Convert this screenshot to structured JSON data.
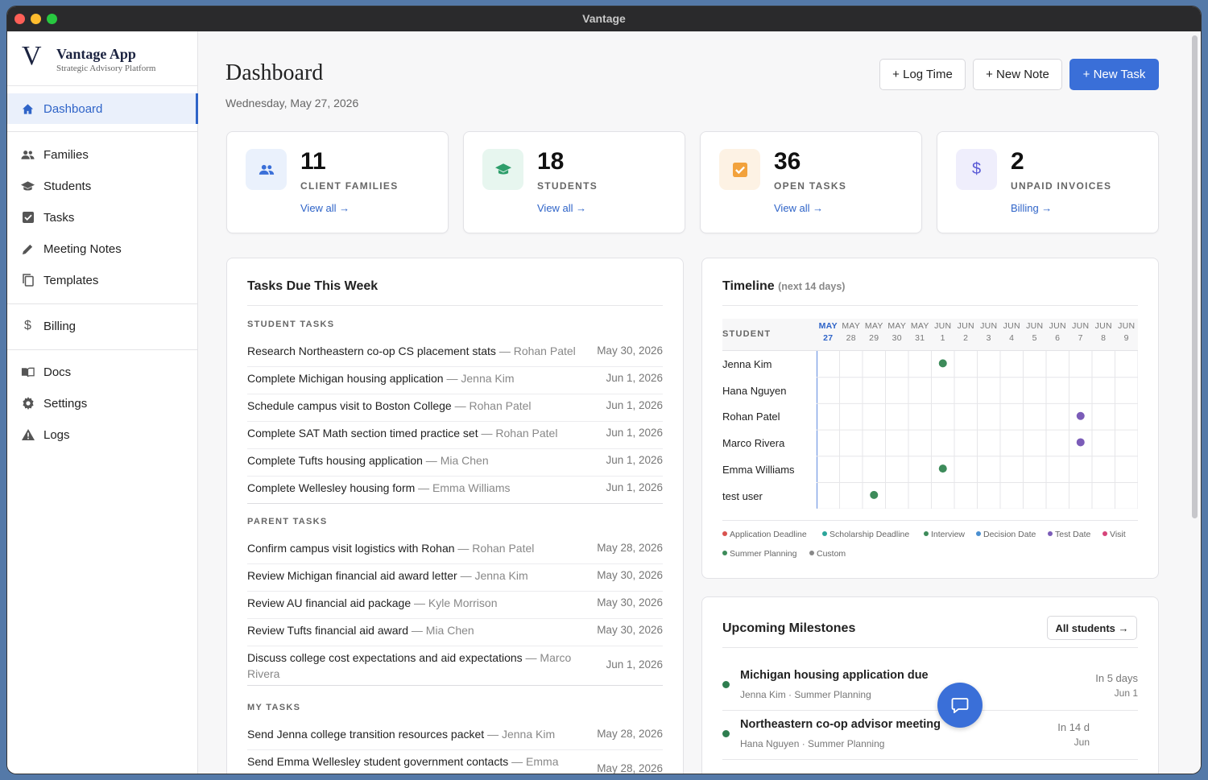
{
  "window": {
    "title": "Vantage"
  },
  "brand": {
    "logo": "V",
    "name": "Vantage App",
    "subtitle": "Strategic Advisory Platform"
  },
  "sidebar": {
    "items": [
      {
        "label": "Dashboard",
        "icon": "home-icon",
        "active": true
      },
      {
        "label": "Families",
        "icon": "people-icon"
      },
      {
        "label": "Students",
        "icon": "graduation-cap-icon"
      },
      {
        "label": "Tasks",
        "icon": "checkbox-icon"
      },
      {
        "label": "Meeting Notes",
        "icon": "pencil-icon"
      },
      {
        "label": "Templates",
        "icon": "copy-icon"
      },
      {
        "label": "Billing",
        "icon": "dollar-icon"
      },
      {
        "label": "Docs",
        "icon": "book-icon"
      },
      {
        "label": "Settings",
        "icon": "gear-icon"
      },
      {
        "label": "Logs",
        "icon": "warning-icon"
      }
    ]
  },
  "header": {
    "title": "Dashboard",
    "date": "Wednesday, May 27, 2026",
    "buttons": {
      "log_time": "+ Log Time",
      "new_note": "+ New Note",
      "new_task": "+ New Task"
    }
  },
  "stats": [
    {
      "value": "11",
      "label": "CLIENT FAMILIES",
      "link": "View all →",
      "icon": "people-icon",
      "color": "#3a6fd8",
      "bg": "#eaf1fc"
    },
    {
      "value": "18",
      "label": "STUDENTS",
      "link": "View all →",
      "icon": "graduation-cap-icon",
      "color": "#2e9e6b",
      "bg": "#e7f6ef"
    },
    {
      "value": "36",
      "label": "OPEN TASKS",
      "link": "View all →",
      "icon": "checkbox-icon",
      "color": "#f2a23c",
      "bg": "#fdf2e4"
    },
    {
      "value": "2",
      "label": "UNPAID INVOICES",
      "link": "Billing →",
      "icon": "dollar-icon",
      "color": "#5a5ad6",
      "bg": "#efeefc"
    }
  ],
  "tasks": {
    "title": "Tasks Due This Week",
    "sections": [
      {
        "label": "STUDENT TASKS",
        "items": [
          {
            "task": "Research Northeastern co-op CS placement stats",
            "who": " — Rohan Patel",
            "date": "May 30, 2026"
          },
          {
            "task": "Complete Michigan housing application",
            "who": " — Jenna Kim",
            "date": "Jun 1, 2026"
          },
          {
            "task": "Schedule campus visit to Boston College",
            "who": " — Rohan Patel",
            "date": "Jun 1, 2026"
          },
          {
            "task": "Complete SAT Math section timed practice set",
            "who": " — Rohan Patel",
            "date": "Jun 1, 2026"
          },
          {
            "task": "Complete Tufts housing application",
            "who": " — Mia Chen",
            "date": "Jun 1, 2026"
          },
          {
            "task": "Complete Wellesley housing form",
            "who": " — Emma Williams",
            "date": "Jun 1, 2026"
          }
        ]
      },
      {
        "label": "PARENT TASKS",
        "items": [
          {
            "task": "Confirm campus visit logistics with Rohan",
            "who": " — Rohan Patel",
            "date": "May 28, 2026"
          },
          {
            "task": "Review Michigan financial aid award letter",
            "who": " — Jenna Kim",
            "date": "May 30, 2026"
          },
          {
            "task": "Review AU financial aid package",
            "who": " — Kyle Morrison",
            "date": "May 30, 2026"
          },
          {
            "task": "Review Tufts financial aid award",
            "who": " — Mia Chen",
            "date": "May 30, 2026"
          },
          {
            "task": "Discuss college cost expectations and aid expectations",
            "who": " — Marco Rivera",
            "date": "Jun 1, 2026"
          }
        ]
      },
      {
        "label": "MY TASKS",
        "items": [
          {
            "task": "Send Jenna college transition resources packet",
            "who": " — Jenna Kim",
            "date": "May 28, 2026"
          },
          {
            "task": "Send Emma Wellesley student government contacts",
            "who": " — Emma",
            "date": "May 28, 2026"
          }
        ]
      }
    ]
  },
  "timeline": {
    "title": "Timeline",
    "subtitle": "(next 14 days)",
    "column_label": "STUDENT",
    "days": [
      {
        "m": "MAY",
        "d": "27"
      },
      {
        "m": "MAY",
        "d": "28"
      },
      {
        "m": "MAY",
        "d": "29"
      },
      {
        "m": "MAY",
        "d": "30"
      },
      {
        "m": "MAY",
        "d": "31"
      },
      {
        "m": "JUN",
        "d": "1"
      },
      {
        "m": "JUN",
        "d": "2"
      },
      {
        "m": "JUN",
        "d": "3"
      },
      {
        "m": "JUN",
        "d": "4"
      },
      {
        "m": "JUN",
        "d": "5"
      },
      {
        "m": "JUN",
        "d": "6"
      },
      {
        "m": "JUN",
        "d": "7"
      },
      {
        "m": "JUN",
        "d": "8"
      },
      {
        "m": "JUN",
        "d": "9"
      }
    ],
    "students": [
      {
        "name": "Jenna Kim",
        "events": [
          {
            "day": 5,
            "color": "#3d8b5a"
          }
        ]
      },
      {
        "name": "Hana Nguyen",
        "events": []
      },
      {
        "name": "Rohan Patel",
        "events": [
          {
            "day": 11,
            "color": "#7b5cb8"
          }
        ]
      },
      {
        "name": "Marco Rivera",
        "events": [
          {
            "day": 11,
            "color": "#7b5cb8"
          }
        ]
      },
      {
        "name": "Emma Williams",
        "events": [
          {
            "day": 5,
            "color": "#3d8b5a"
          }
        ]
      },
      {
        "name": "test user",
        "events": [
          {
            "day": 2,
            "color": "#3d8b5a"
          }
        ]
      }
    ],
    "legend": [
      {
        "label": "Application Deadline",
        "color": "#d9534f"
      },
      {
        "label": "Scholarship Deadline",
        "color": "#2aa59a"
      },
      {
        "label": "Interview",
        "color": "#3d8b5a"
      },
      {
        "label": "Decision Date",
        "color": "#4a8fd0"
      },
      {
        "label": "Test Date",
        "color": "#7b5cb8"
      },
      {
        "label": "Visit",
        "color": "#d6447a"
      },
      {
        "label": "Summer Planning",
        "color": "#3d8b5a"
      },
      {
        "label": "Custom",
        "color": "#888888"
      }
    ]
  },
  "milestones": {
    "title": "Upcoming Milestones",
    "button": "All students →",
    "items": [
      {
        "title": "Michigan housing application due",
        "sub": "Jenna Kim · Summer Planning",
        "in": "In 5 days",
        "date": "Jun 1"
      },
      {
        "title": "Northeastern co-op advisor meeting",
        "sub": "Hana Nguyen · Summer Planning",
        "in": "In 14 d",
        "date": "Jun"
      }
    ]
  }
}
